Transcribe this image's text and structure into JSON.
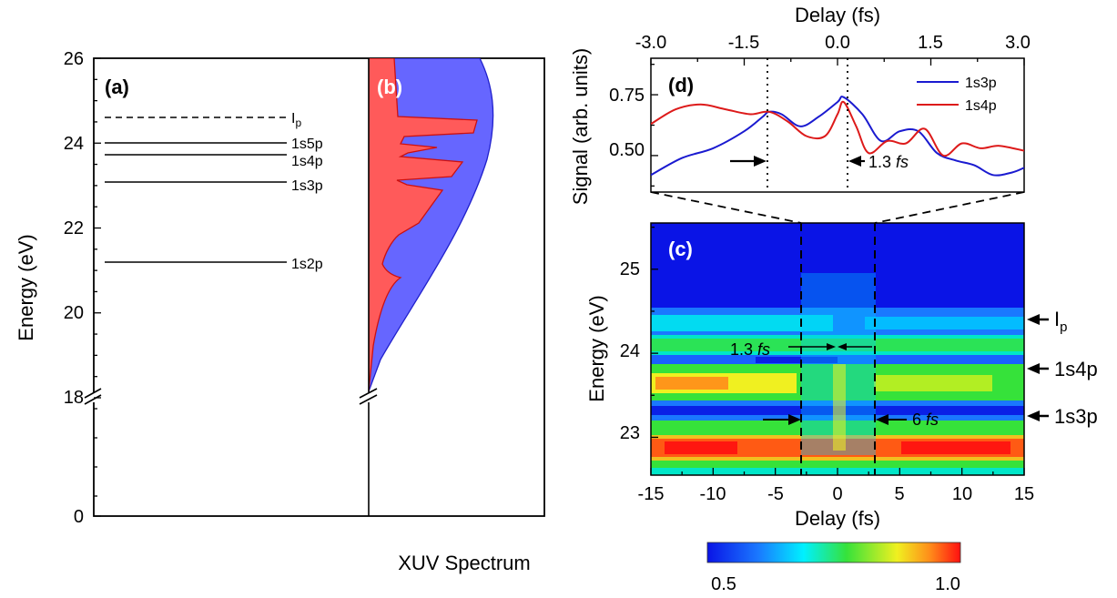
{
  "panel_a": {
    "label": "(a)",
    "ylabel": "Energy (eV)",
    "ticks": [
      "26",
      "24",
      "22",
      "20",
      "18",
      "0"
    ],
    "levels": [
      {
        "name": "1s2p",
        "energy": 21.2,
        "style": "solid"
      },
      {
        "name": "1s3p",
        "energy": 23.1,
        "style": "solid"
      },
      {
        "name": "1s4p",
        "energy": 23.74,
        "style": "solid"
      },
      {
        "name": "1s5p",
        "energy": 24.0,
        "style": "solid"
      }
    ],
    "ip": {
      "main": "I",
      "sub": "p",
      "energy": 24.59,
      "style": "dashed"
    }
  },
  "panel_b": {
    "label": "(b)",
    "xlabel": "XUV Spectrum",
    "colors": {
      "envelope": "#6666ff",
      "transmitted": "#ff5a5a",
      "envelope_edge": "#2020cc",
      "transmitted_edge": "#cc1010"
    }
  },
  "panel_d": {
    "label": "(d)",
    "xlabel_top": "Delay (fs)",
    "ylabel": "Signal (arb. units)",
    "xticks": [
      "-3.0",
      "-1.5",
      "0.0",
      "1.5",
      "3.0"
    ],
    "yticks": [
      "0.75",
      "0.50"
    ],
    "annotation_value": "1.3",
    "annotation_unit": "fs",
    "legend": [
      {
        "name": "1s3p",
        "color": "#1a1ad0"
      },
      {
        "name": "1s4p",
        "color": "#dd1a1a"
      }
    ]
  },
  "panel_c": {
    "label": "(c)",
    "xlabel": "Delay (fs)",
    "ylabel": "Energy (eV)",
    "xticks": [
      "-15",
      "-10",
      "-5",
      "0",
      "5",
      "10",
      "15"
    ],
    "yticks": [
      "25",
      "24",
      "23"
    ],
    "inner_annotation_value": "1.3",
    "inner_annotation_unit": "fs",
    "outer_annotation_value": "6",
    "outer_annotation_unit": "fs",
    "right_labels": [
      {
        "main": "I",
        "sub": "p"
      },
      {
        "main": "1s4p",
        "sub": ""
      },
      {
        "main": "1s3p",
        "sub": ""
      }
    ]
  },
  "colorbar": {
    "min_label": "0.5",
    "max_label": "1.0"
  },
  "chart_data": [
    {
      "type": "line",
      "panel": "d",
      "xlabel": "Delay (fs)",
      "ylabel": "Signal (arb. units)",
      "xlim": [
        -3.0,
        3.0
      ],
      "ylim": [
        0.35,
        0.9
      ],
      "series": [
        {
          "name": "1s3p",
          "x": [
            -3.0,
            -2.5,
            -2.0,
            -1.5,
            -1.2,
            -1.1,
            -0.9,
            -0.6,
            -0.3,
            0.0,
            0.1,
            0.4,
            0.7,
            1.0,
            1.3,
            1.6,
            1.9,
            2.2,
            2.5,
            2.8,
            3.0
          ],
          "y": [
            0.42,
            0.49,
            0.53,
            0.6,
            0.66,
            0.68,
            0.67,
            0.62,
            0.66,
            0.72,
            0.74,
            0.67,
            0.56,
            0.6,
            0.6,
            0.51,
            0.48,
            0.46,
            0.42,
            0.43,
            0.45
          ]
        },
        {
          "name": "1s4p",
          "x": [
            -3.0,
            -2.6,
            -2.2,
            -1.8,
            -1.4,
            -1.1,
            -0.8,
            -0.5,
            -0.2,
            0.0,
            0.1,
            0.3,
            0.5,
            0.8,
            1.1,
            1.4,
            1.7,
            2.0,
            2.3,
            2.6,
            3.0
          ],
          "y": [
            0.63,
            0.69,
            0.71,
            0.69,
            0.67,
            0.68,
            0.64,
            0.58,
            0.58,
            0.67,
            0.72,
            0.62,
            0.51,
            0.56,
            0.55,
            0.61,
            0.5,
            0.55,
            0.53,
            0.54,
            0.52
          ]
        }
      ]
    },
    {
      "type": "heatmap",
      "panel": "c",
      "xlabel": "Delay (fs)",
      "ylabel": "Energy (eV)",
      "xlim": [
        -15,
        15
      ],
      "ylim": [
        22.55,
        25.55
      ],
      "colorbar_range": [
        0.5,
        1.0
      ],
      "bands": [
        {
          "energy": 22.85,
          "value": 1.0,
          "width": 0.13
        },
        {
          "energy": 23.45,
          "value": 0.9,
          "width": 0.16
        },
        {
          "energy": 23.95,
          "value": 0.83,
          "width": 0.13
        },
        {
          "energy": 24.3,
          "value": 0.7,
          "width": 0.13
        },
        {
          "energy": 23.25,
          "value": 0.5,
          "width": 0.08
        },
        {
          "energy": 23.78,
          "value": 0.5,
          "width": 0.07
        }
      ]
    },
    {
      "type": "area",
      "panel": "b",
      "xlabel": "XUV Spectrum",
      "series": [
        {
          "name": "",
          "y": [
            18,
            19,
            20,
            21,
            22,
            23,
            24,
            25,
            26
          ]
        }
      ]
    }
  ]
}
